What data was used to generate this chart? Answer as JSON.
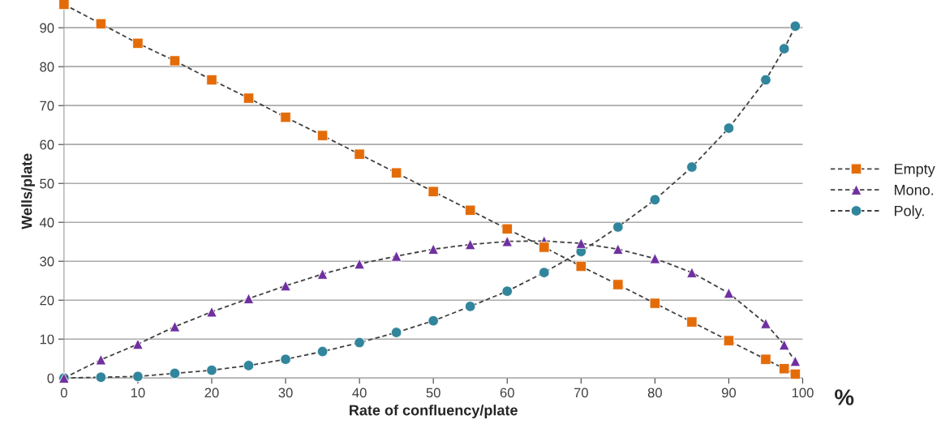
{
  "chart_data": {
    "type": "line",
    "xlabel": "Rate of confluency/plate",
    "ylabel": "Wells/plate",
    "x": [
      0,
      5,
      10,
      15,
      20,
      25,
      30,
      35,
      40,
      45,
      50,
      55,
      60,
      65,
      70,
      75,
      80,
      85,
      90,
      95,
      97.5,
      99
    ],
    "series": [
      {
        "name": "Empty",
        "color": "#e36c09",
        "marker": "square",
        "values": [
          96,
          91,
          86,
          81.5,
          76.6,
          71.9,
          67,
          62.3,
          57.5,
          52.7,
          47.9,
          43.1,
          38.3,
          33.6,
          28.7,
          24,
          19.2,
          14.4,
          9.6,
          4.8,
          2.4,
          1.0
        ]
      },
      {
        "name": "Mono.",
        "color": "#7030a0",
        "marker": "triangle",
        "values": [
          0,
          4.7,
          8.7,
          13.2,
          17,
          20.4,
          23.7,
          26.7,
          29.3,
          31.3,
          33.1,
          34.3,
          35.1,
          35.2,
          34.6,
          33.1,
          30.7,
          27.1,
          21.8,
          14,
          8.5,
          4.3
        ]
      },
      {
        "name": "Poly.",
        "color": "#31859c",
        "marker": "circle",
        "values": [
          0,
          0.2,
          0.4,
          1.2,
          2,
          3.2,
          4.8,
          6.8,
          9.1,
          11.7,
          14.7,
          18.4,
          22.3,
          27.1,
          32.5,
          38.8,
          45.8,
          54.2,
          64.2,
          76.6,
          84.6,
          90.4
        ]
      }
    ],
    "line_style": "dashed",
    "xlim": [
      0,
      100
    ],
    "xticks": [
      0,
      10,
      20,
      30,
      40,
      50,
      60,
      70,
      80,
      90,
      100
    ],
    "ylim": [
      0,
      96
    ],
    "yticks": [
      0,
      10,
      20,
      30,
      40,
      50,
      60,
      70,
      80,
      90
    ],
    "grid": "y",
    "legend": "right",
    "annotations": [
      {
        "text": "%",
        "x": 100,
        "y": 0
      }
    ]
  }
}
